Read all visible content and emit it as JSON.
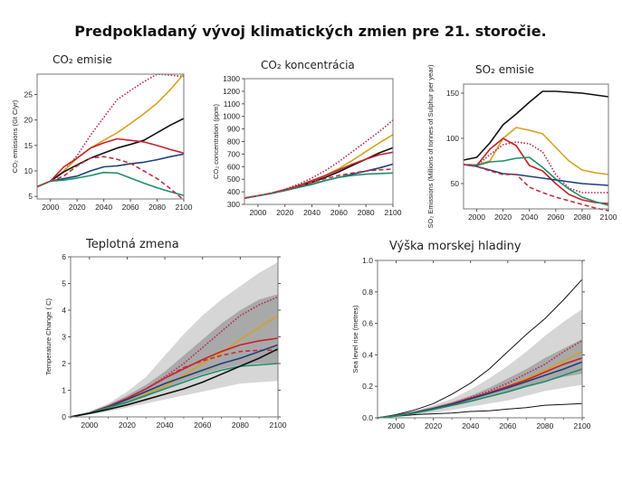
{
  "title": "Predpokladaný vývoj klimatických zmien pre 21. storočie.",
  "colors": {
    "dotted_red": "#b5304e",
    "gold": "#d4a21e",
    "black": "#111111",
    "red": "#c8202c",
    "navy": "#1f3f7a",
    "green": "#1b8f6c",
    "dashed_red": "#c03040",
    "band_light": "#d6d6d6",
    "band_dark": "#a9a9a9"
  },
  "chart_data": [
    {
      "type": "line",
      "title": "CO₂ emisie",
      "ylabel": "CO₂ emissions (Gt C/yr)",
      "xlim": [
        1990,
        2100
      ],
      "ylim": [
        4.5,
        29
      ],
      "xticks": [
        "2000",
        "2020",
        "2040",
        "2060",
        "2080",
        "2100"
      ],
      "yticks": [
        "5",
        "10",
        "15",
        "20",
        "25"
      ],
      "x": [
        1990,
        2000,
        2010,
        2020,
        2030,
        2040,
        2050,
        2060,
        2070,
        2080,
        2090,
        2100
      ],
      "series": [
        {
          "color": "dotted_red",
          "style": "dotted",
          "values": [
            6.9,
            8,
            10,
            13,
            17,
            20.5,
            24,
            25.8,
            27.5,
            29,
            28.8,
            28.5
          ]
        },
        {
          "color": "gold",
          "style": "solid",
          "values": [
            6.9,
            8,
            10,
            12.5,
            14.5,
            16,
            17.5,
            19.3,
            21.2,
            23.3,
            26,
            29
          ]
        },
        {
          "color": "black",
          "style": "solid",
          "values": [
            6.9,
            8,
            9.8,
            11.2,
            12.5,
            13.5,
            14.5,
            15.2,
            16,
            17.5,
            19,
            20.3
          ]
        },
        {
          "color": "red",
          "style": "solid",
          "values": [
            6.9,
            8,
            10.8,
            12.5,
            14.5,
            15.5,
            16.3,
            16,
            15.7,
            15,
            14.2,
            13.5
          ]
        },
        {
          "color": "navy",
          "style": "solid",
          "values": [
            6.9,
            8,
            8.5,
            9,
            10,
            10.8,
            11,
            11.4,
            11.7,
            12.2,
            12.8,
            13.3
          ]
        },
        {
          "color": "green",
          "style": "solid",
          "values": [
            6.9,
            8,
            8.2,
            8.6,
            9.1,
            9.7,
            9.6,
            8.6,
            7.6,
            6.7,
            5.9,
            5.2
          ]
        },
        {
          "color": "dashed_red",
          "style": "dashed",
          "values": [
            6.9,
            8,
            9,
            11,
            12.5,
            12.8,
            12.3,
            11.5,
            10,
            8.5,
            6.5,
            4.3
          ]
        }
      ]
    },
    {
      "type": "line",
      "title": "CO₂ koncentrácia",
      "ylabel": "CO₂ concentration (ppm)",
      "xlim": [
        1990,
        2100
      ],
      "ylim": [
        300,
        1300
      ],
      "xticks": [
        "2000",
        "2020",
        "2040",
        "2060",
        "2080",
        "2100"
      ],
      "yticks": [
        "300",
        "400",
        "500",
        "600",
        "700",
        "800",
        "900",
        "1000",
        "1100",
        "1200",
        "1300"
      ],
      "x": [
        1990,
        2000,
        2010,
        2020,
        2030,
        2040,
        2050,
        2060,
        2070,
        2080,
        2090,
        2100
      ],
      "series": [
        {
          "color": "dotted_red",
          "style": "dotted",
          "values": [
            350,
            368,
            390,
            420,
            460,
            510,
            570,
            640,
            720,
            800,
            880,
            970
          ]
        },
        {
          "color": "gold",
          "style": "solid",
          "values": [
            350,
            368,
            388,
            415,
            445,
            480,
            530,
            585,
            650,
            720,
            790,
            855
          ]
        },
        {
          "color": "black",
          "style": "solid",
          "values": [
            350,
            368,
            388,
            413,
            442,
            475,
            515,
            560,
            610,
            660,
            710,
            750
          ]
        },
        {
          "color": "red",
          "style": "solid",
          "values": [
            350,
            368,
            390,
            418,
            450,
            490,
            530,
            575,
            620,
            660,
            695,
            715
          ]
        },
        {
          "color": "navy",
          "style": "solid",
          "values": [
            350,
            368,
            388,
            410,
            435,
            460,
            490,
            515,
            540,
            565,
            590,
            620
          ]
        },
        {
          "color": "green",
          "style": "solid",
          "values": [
            350,
            368,
            388,
            410,
            435,
            460,
            490,
            515,
            530,
            540,
            545,
            550
          ]
        },
        {
          "color": "dashed_red",
          "style": "dashed",
          "values": [
            350,
            368,
            390,
            415,
            445,
            475,
            505,
            530,
            550,
            565,
            575,
            580
          ]
        }
      ]
    },
    {
      "type": "line",
      "title": "SO₂ emisie",
      "ylabel": "SO₂ Emissions (Millions of tonnes of Sulphur per year)",
      "xlim": [
        1990,
        2100
      ],
      "ylim": [
        22,
        160
      ],
      "xticks": [
        "2000",
        "2020",
        "2040",
        "2060",
        "2080",
        "2100"
      ],
      "yticks": [
        "50",
        "100",
        "150"
      ],
      "x": [
        1990,
        2000,
        2010,
        2020,
        2030,
        2040,
        2050,
        2060,
        2070,
        2080,
        2090,
        2100
      ],
      "series": [
        {
          "color": "black",
          "style": "solid",
          "values": [
            76,
            79,
            95,
            115,
            127,
            140,
            152,
            152,
            151,
            150,
            148,
            146
          ]
        },
        {
          "color": "gold",
          "style": "solid",
          "values": [
            71,
            71,
            75,
            100,
            112,
            109,
            105,
            90,
            75,
            65,
            62,
            60
          ]
        },
        {
          "color": "red",
          "style": "solid",
          "values": [
            71,
            70,
            88,
            100,
            92,
            70,
            64,
            50,
            38,
            32,
            29,
            28
          ]
        },
        {
          "color": "dotted_red",
          "style": "dotted",
          "values": [
            71,
            70,
            82,
            93,
            96,
            94,
            85,
            60,
            45,
            40,
            40,
            40
          ]
        },
        {
          "color": "green",
          "style": "solid",
          "values": [
            71,
            70,
            74,
            75,
            78,
            79,
            68,
            55,
            44,
            35,
            30,
            26
          ]
        },
        {
          "color": "navy",
          "style": "solid",
          "values": [
            71,
            69,
            65,
            61,
            60,
            58,
            56,
            54,
            52,
            50,
            49,
            48
          ]
        },
        {
          "color": "dashed_red",
          "style": "dashed",
          "values": [
            71,
            69,
            64,
            60,
            60,
            46,
            40,
            35,
            31,
            27,
            23,
            20
          ]
        }
      ]
    },
    {
      "type": "area",
      "title": "Teplotná zmena",
      "ylabel": "Temperature Change ( C)",
      "xlim": [
        1990,
        2100
      ],
      "ylim": [
        0,
        6
      ],
      "xticks": [
        "2000",
        "2020",
        "2040",
        "2060",
        "2080",
        "2100"
      ],
      "yticks": [
        "0",
        "1",
        "2",
        "3",
        "4",
        "5",
        "6"
      ],
      "x": [
        1990,
        2000,
        2010,
        2020,
        2030,
        2040,
        2050,
        2060,
        2070,
        2080,
        2090,
        2100
      ],
      "bands": [
        {
          "color": "band_light",
          "lower": [
            0,
            0.1,
            0.2,
            0.35,
            0.5,
            0.65,
            0.8,
            0.95,
            1.1,
            1.25,
            1.3,
            1.35
          ],
          "upper": [
            0,
            0.2,
            0.5,
            0.95,
            1.5,
            2.3,
            3.1,
            3.8,
            4.4,
            4.9,
            5.4,
            5.8
          ]
        },
        {
          "color": "band_dark",
          "lower": [
            0,
            0.12,
            0.3,
            0.5,
            0.75,
            1.05,
            1.35,
            1.6,
            1.8,
            1.95,
            2.0,
            2.0
          ],
          "upper": [
            0,
            0.18,
            0.45,
            0.8,
            1.2,
            1.7,
            2.3,
            2.9,
            3.5,
            4.0,
            4.4,
            4.6
          ]
        }
      ],
      "series": [
        {
          "color": "dotted_red",
          "style": "dotted",
          "values": [
            0,
            0.15,
            0.4,
            0.7,
            1.05,
            1.5,
            2.0,
            2.6,
            3.2,
            3.8,
            4.2,
            4.5
          ]
        },
        {
          "color": "gold",
          "style": "solid",
          "values": [
            0,
            0.15,
            0.35,
            0.55,
            0.85,
            1.15,
            1.55,
            2.0,
            2.4,
            2.9,
            3.35,
            3.8
          ]
        },
        {
          "color": "red",
          "style": "solid",
          "values": [
            0,
            0.15,
            0.4,
            0.7,
            1.05,
            1.45,
            1.8,
            2.15,
            2.45,
            2.7,
            2.85,
            2.95
          ]
        },
        {
          "color": "dashed_red",
          "style": "dashed",
          "values": [
            0,
            0.15,
            0.4,
            0.7,
            1.05,
            1.45,
            1.85,
            2.1,
            2.3,
            2.45,
            2.5,
            2.5
          ]
        },
        {
          "color": "navy",
          "style": "solid",
          "values": [
            0,
            0.15,
            0.37,
            0.65,
            0.95,
            1.25,
            1.5,
            1.75,
            2.0,
            2.2,
            2.45,
            2.7
          ]
        },
        {
          "color": "green",
          "style": "solid",
          "values": [
            0,
            0.15,
            0.35,
            0.55,
            0.8,
            1.05,
            1.3,
            1.55,
            1.75,
            1.9,
            1.95,
            2.0
          ]
        },
        {
          "color": "black",
          "style": "solid",
          "values": [
            0,
            0.13,
            0.28,
            0.45,
            0.65,
            0.85,
            1.05,
            1.3,
            1.6,
            1.9,
            2.2,
            2.55
          ]
        }
      ]
    },
    {
      "type": "area",
      "title": "Výška morskej hladiny",
      "ylabel": "Sea level rise (metres)",
      "xlim": [
        1990,
        2100
      ],
      "ylim": [
        0,
        1
      ],
      "xticks": [
        "2000",
        "2020",
        "2040",
        "2060",
        "2080",
        "2100"
      ],
      "yticks": [
        "0.0",
        "0.2",
        "0.4",
        "0.6",
        "0.8",
        "1.0"
      ],
      "x": [
        1990,
        2000,
        2010,
        2020,
        2030,
        2040,
        2050,
        2060,
        2070,
        2080,
        2090,
        2100
      ],
      "bands": [
        {
          "color": "band_light",
          "lower": [
            0,
            0.005,
            0.015,
            0.03,
            0.05,
            0.07,
            0.09,
            0.11,
            0.14,
            0.17,
            0.19,
            0.21
          ],
          "upper": [
            0,
            0.02,
            0.045,
            0.08,
            0.12,
            0.18,
            0.25,
            0.33,
            0.42,
            0.52,
            0.61,
            0.69
          ]
        },
        {
          "color": "band_dark",
          "lower": [
            0,
            0.012,
            0.03,
            0.055,
            0.08,
            0.11,
            0.14,
            0.17,
            0.2,
            0.23,
            0.26,
            0.28
          ],
          "upper": [
            0,
            0.015,
            0.04,
            0.07,
            0.1,
            0.14,
            0.19,
            0.25,
            0.31,
            0.38,
            0.44,
            0.5
          ]
        }
      ],
      "series": [
        {
          "color": "black",
          "style": "thin",
          "values": [
            0,
            0.02,
            0.05,
            0.09,
            0.15,
            0.22,
            0.31,
            0.42,
            0.53,
            0.63,
            0.75,
            0.88
          ]
        },
        {
          "color": "black",
          "style": "thin",
          "values": [
            0,
            0.01,
            0.02,
            0.025,
            0.03,
            0.04,
            0.045,
            0.055,
            0.065,
            0.08,
            0.085,
            0.09
          ]
        },
        {
          "color": "dotted_red",
          "style": "dotted",
          "values": [
            0,
            0.014,
            0.035,
            0.06,
            0.09,
            0.13,
            0.17,
            0.22,
            0.28,
            0.34,
            0.42,
            0.49
          ]
        },
        {
          "color": "gold",
          "style": "solid",
          "values": [
            0,
            0.014,
            0.033,
            0.058,
            0.085,
            0.12,
            0.16,
            0.2,
            0.25,
            0.3,
            0.36,
            0.42
          ]
        },
        {
          "color": "red",
          "style": "solid",
          "values": [
            0,
            0.014,
            0.035,
            0.06,
            0.09,
            0.125,
            0.16,
            0.2,
            0.24,
            0.29,
            0.34,
            0.38
          ]
        },
        {
          "color": "navy",
          "style": "solid",
          "values": [
            0,
            0.013,
            0.033,
            0.058,
            0.085,
            0.12,
            0.155,
            0.19,
            0.23,
            0.27,
            0.31,
            0.355
          ]
        },
        {
          "color": "green",
          "style": "solid",
          "values": [
            0,
            0.012,
            0.03,
            0.053,
            0.078,
            0.105,
            0.135,
            0.165,
            0.2,
            0.23,
            0.27,
            0.31
          ]
        }
      ]
    }
  ]
}
